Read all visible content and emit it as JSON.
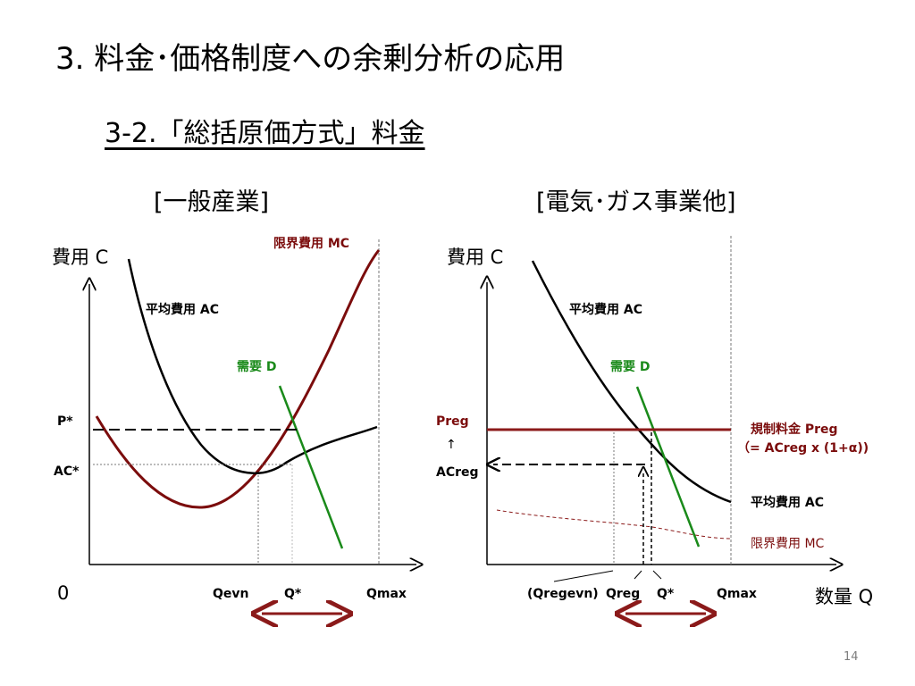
{
  "slide": {
    "title": "3. 料金･価格制度への余剰分析の応用",
    "subtitle": "3-2.「総括原価方式」料金",
    "page_number": "14"
  },
  "left_panel": {
    "label": "[一般産業]",
    "y_axis_label": "費用 C",
    "origin_label": "0",
    "mc_label": "限界費用 MC",
    "ac_label": "平均費用 AC",
    "demand_label": "需要 D",
    "p_star_label": "P*",
    "ac_star_label": "AC*",
    "x_labels": [
      "Qevn",
      "Q*",
      "Qmax"
    ]
  },
  "right_panel": {
    "label": "[電気･ガス事業他]",
    "y_axis_label": "費用 C",
    "x_axis_label": "数量 Q",
    "ac_label_top": "平均費用 AC",
    "demand_label": "需要 D",
    "preg_label": "Preg",
    "up_arrow": "↑",
    "acreg_label": "ACreg",
    "reg_price_label": "規制料金 Preg",
    "reg_price_formula": "（= ACreg x (1+α))",
    "ac_label_right": "平均費用 AC",
    "mc_label": "限界費用 MC",
    "x_labels": [
      "(Qregevn)",
      "Qreg",
      "Q*",
      "Qmax"
    ]
  },
  "colors": {
    "mc_curve": "#7b0c0c",
    "ac_curve": "#000000",
    "demand": "#1a8a1a",
    "reg_price": "#8b1a1a",
    "arrow": "#8b1a1a"
  }
}
